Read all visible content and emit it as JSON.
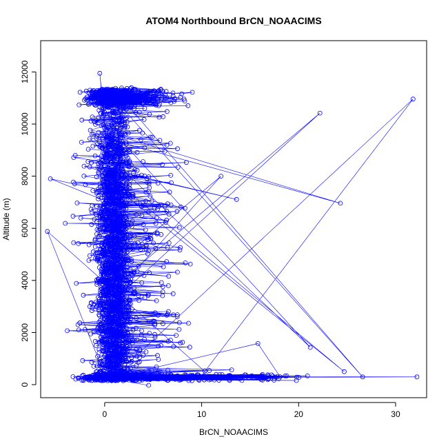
{
  "chart_data": {
    "type": "scatter",
    "title": "ATOM4 Northbound BrCN_NOAACIMS",
    "xlabel": "BrCN_NOAACIMS",
    "ylabel": "Altitude (m)",
    "xlim": [
      -6.6,
      33.2
    ],
    "ylim": [
      -500,
      13200
    ],
    "x_ticks": [
      0,
      10,
      20,
      30
    ],
    "y_ticks": [
      0,
      2000,
      4000,
      6000,
      8000,
      10000,
      12000
    ],
    "color": "#0000ff",
    "marker": "open-circle",
    "connected": true,
    "grid": false,
    "notable_points": [
      {
        "x": 31.8,
        "y": 10960
      },
      {
        "x": 22.2,
        "y": 10420
      },
      {
        "x": 24.3,
        "y": 6960
      },
      {
        "x": 13.6,
        "y": 7110
      },
      {
        "x": 21.2,
        "y": 1430
      },
      {
        "x": 32.2,
        "y": 300
      },
      {
        "x": 26.6,
        "y": 300
      },
      {
        "x": 24.7,
        "y": 500
      },
      {
        "x": 12.0,
        "y": 8000
      },
      {
        "x": 15.8,
        "y": 1580
      },
      {
        "x": -0.5,
        "y": 11950
      },
      {
        "x": -5.9,
        "y": 5880
      },
      {
        "x": -5.6,
        "y": 7900
      }
    ]
  }
}
